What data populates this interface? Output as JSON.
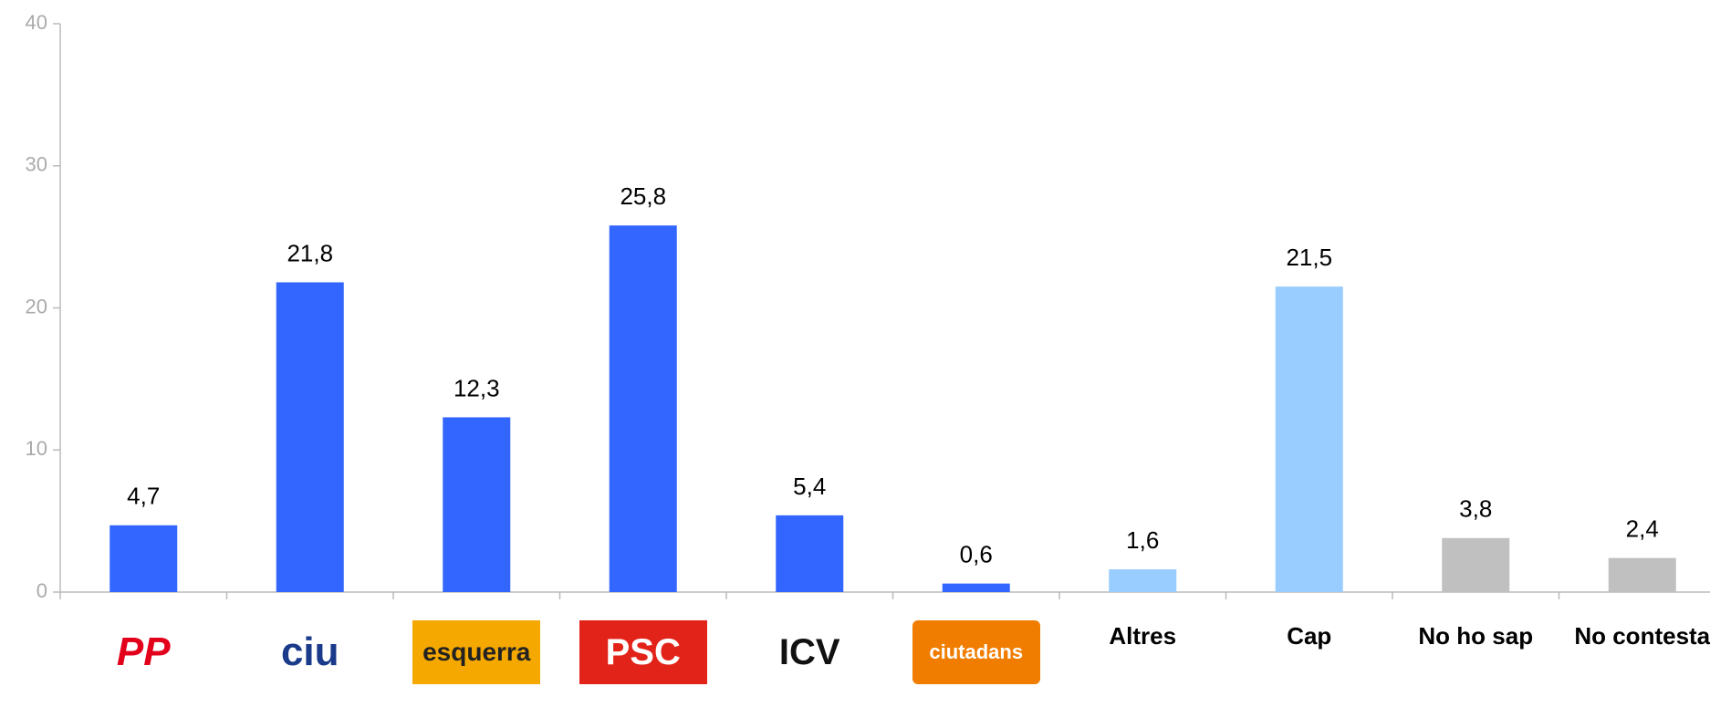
{
  "chart_data": {
    "type": "bar",
    "categories": [
      "PP",
      "ciu",
      "esquerra",
      "PSC",
      "ICV",
      "ciutadans",
      "Altres",
      "Cap",
      "No ho sap",
      "No contesta"
    ],
    "values": [
      4.7,
      21.8,
      12.3,
      25.8,
      5.4,
      0.6,
      1.6,
      21.5,
      3.8,
      2.4
    ],
    "value_labels": [
      "4,7",
      "21,8",
      "12,3",
      "25,8",
      "5,4",
      "0,6",
      "1,6",
      "21,5",
      "3,8",
      "2,4"
    ],
    "colors": [
      "#3366ff",
      "#3366ff",
      "#3366ff",
      "#3366ff",
      "#3366ff",
      "#3366ff",
      "#99ccff",
      "#99ccff",
      "#c0c0c0",
      "#c0c0c0"
    ],
    "ylim": [
      0,
      40
    ],
    "yticks": [
      0,
      10,
      20,
      30,
      40
    ],
    "grid": false
  }
}
